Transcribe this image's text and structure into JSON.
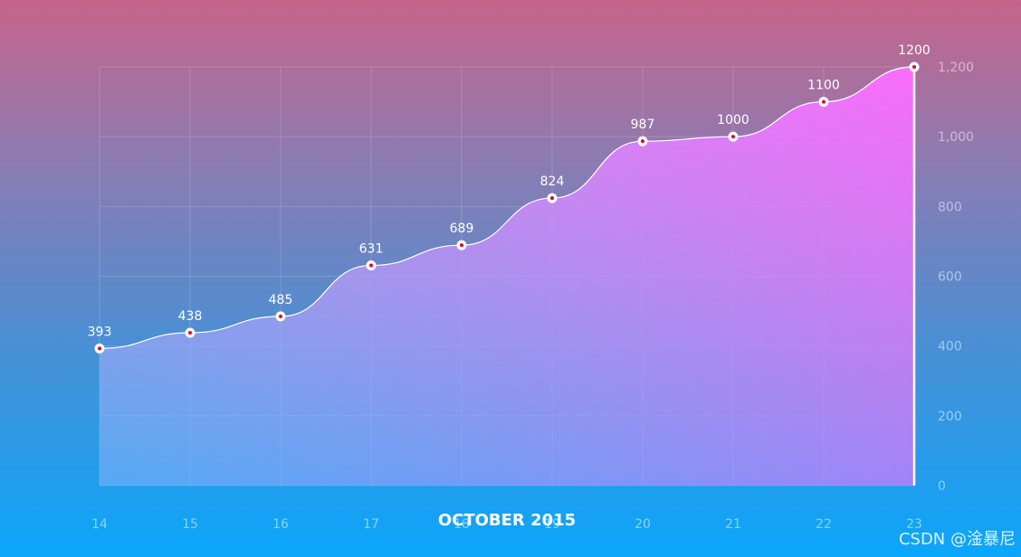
{
  "chart_data": {
    "type": "area",
    "title": "OCTOBER 2015",
    "categories": [
      "14",
      "15",
      "16",
      "17",
      "18",
      "19",
      "20",
      "21",
      "22",
      "23"
    ],
    "values": [
      393,
      438,
      485,
      631,
      689,
      824,
      987,
      1000,
      1100,
      1200
    ],
    "ylim": [
      0,
      1200
    ],
    "yticks": [
      0,
      200,
      400,
      600,
      800,
      1000,
      1200
    ],
    "ytick_labels": [
      "0",
      "200",
      "400",
      "600",
      "800",
      "1,000",
      "1,200"
    ],
    "grid": true,
    "y_axis_side": "right",
    "colors": {
      "area_top": "#f56efe",
      "area_bottom": "#7fb6ee",
      "line": "#ffffff",
      "point_center": "#e0002a"
    }
  },
  "watermark": "CSDN @淦暴尼"
}
